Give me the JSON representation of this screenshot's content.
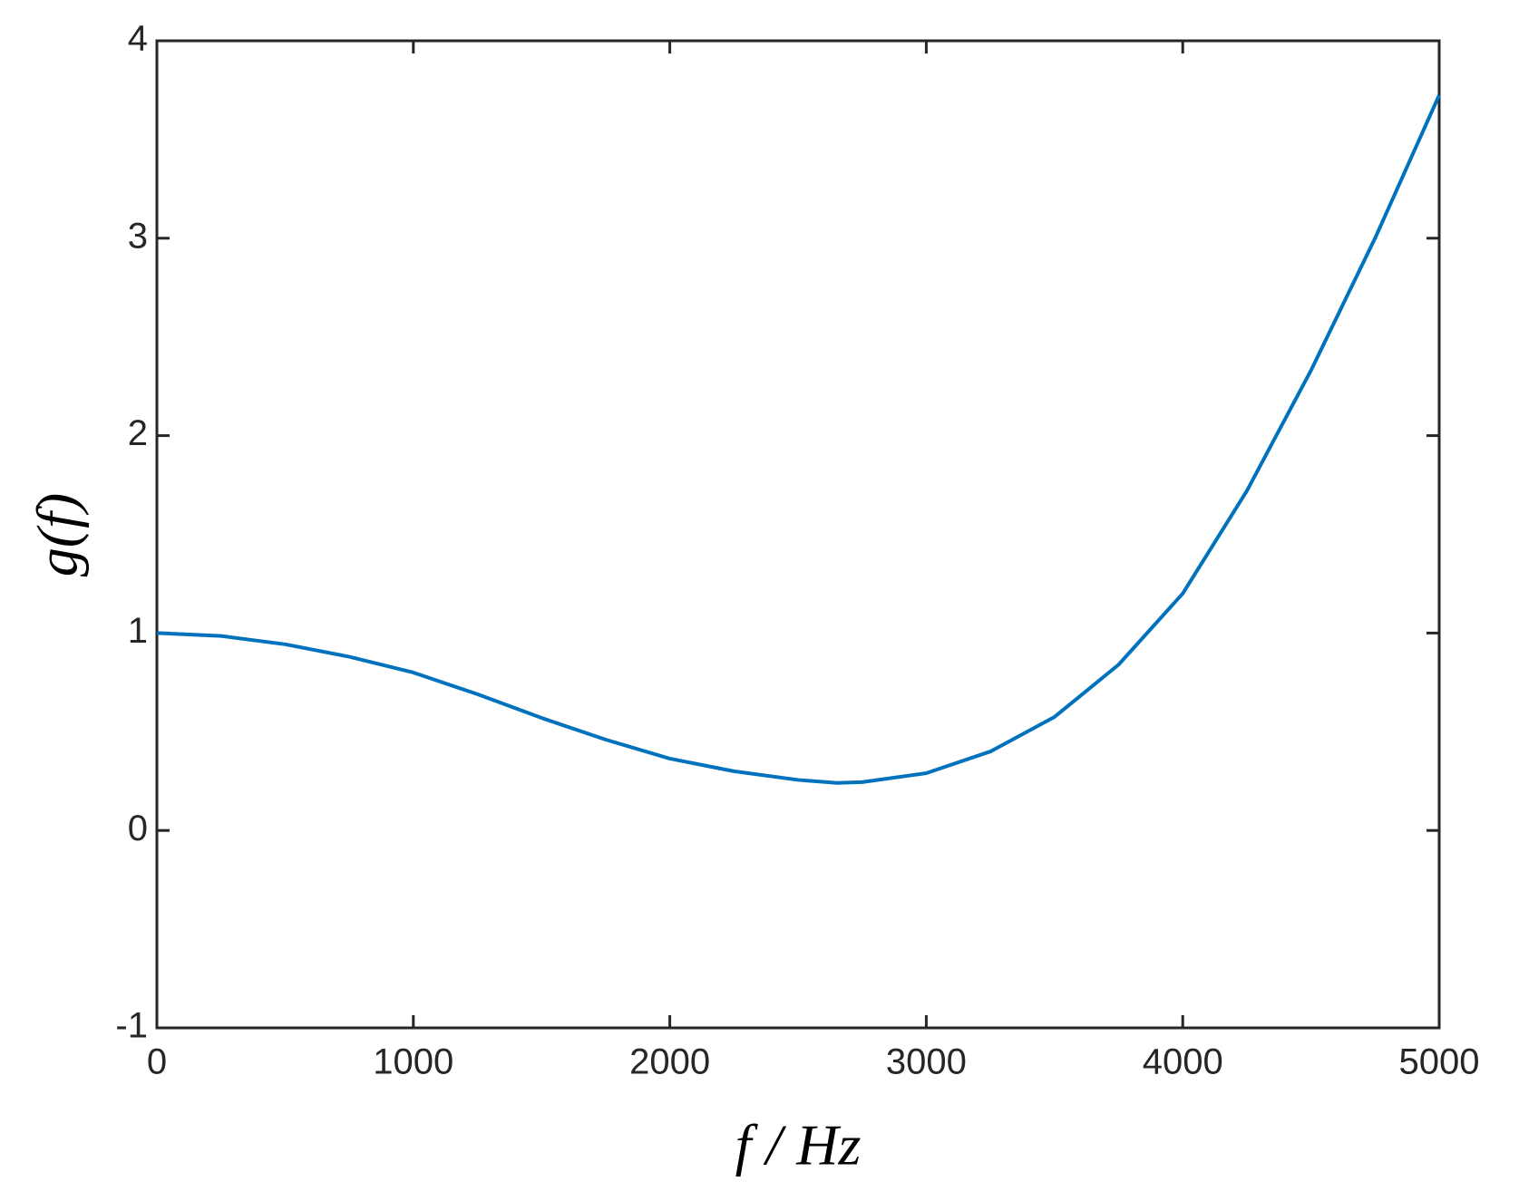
{
  "chart_data": {
    "type": "line",
    "x_label": "f / Hz",
    "y_label": "g(f)",
    "x": [
      0,
      250,
      500,
      750,
      1000,
      1250,
      1500,
      1750,
      2000,
      2250,
      2500,
      2650,
      2750,
      3000,
      3250,
      3500,
      3750,
      4000,
      4250,
      4500,
      4750,
      5000
    ],
    "series": [
      {
        "color": "#0072bd",
        "values": [
          1.0,
          0.985,
          0.943,
          0.88,
          0.8,
          0.69,
          0.57,
          0.46,
          0.364,
          0.3,
          0.256,
          0.241,
          0.245,
          0.29,
          0.4,
          0.575,
          0.84,
          1.2,
          1.72,
          2.33,
          3.0,
          3.725
        ]
      }
    ],
    "xlim": [
      0,
      5000
    ],
    "ylim": [
      -1,
      4
    ],
    "xticks": [
      0,
      1000,
      2000,
      3000,
      4000,
      5000
    ],
    "yticks": [
      -1,
      0,
      1,
      2,
      3,
      4
    ],
    "grid": false
  }
}
